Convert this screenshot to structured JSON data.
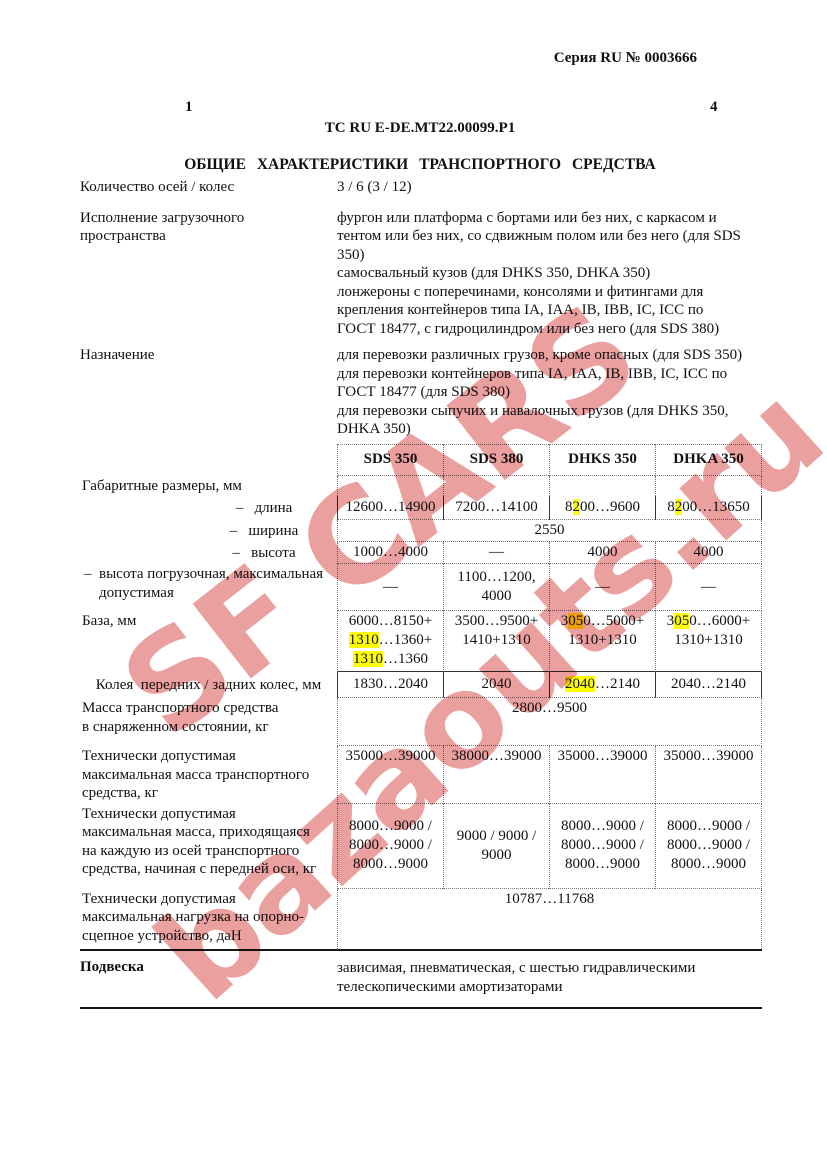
{
  "theme": {
    "highlight": "#ffff00",
    "watermark": "#d84242",
    "text": "#111111"
  },
  "header": {
    "series": "Серия RU № 0003666",
    "page_left": "1",
    "page_right": "4",
    "doc_number": "ТС RU E-DE.MT22.00099.P1",
    "heading": "ОБЩИЕ ХАРАКТЕРИСТИКИ ТРАНСПОРТНОГО СРЕДСТВА"
  },
  "fields": {
    "axles": {
      "label": "Количество осей / колес",
      "value": "3 / 6 (3 / 12)"
    },
    "cargo_space": {
      "label": "Исполнение загрузочного\nпространства",
      "value": "фургон или платформа с бортами или без них, с каркасом и\nтентом или без них, со сдвижным полом или без него (для SDS\n350)\nсамосвальный кузов (для DHKS 350, DHKA 350)\nлонжероны с поперечинами, консолями и фитингами для\nкрепления контейнеров типа IA, IAA, IB, IBB, IC, ICC по\nГОСТ 18477, с гидроцилиндром или без него (для SDS 380)"
    },
    "purpose": {
      "label": "Назначение",
      "value": "для перевозки различных грузов, кроме опасных (для SDS 350)\nдля перевозки контейнеров типа IA, IAA, IB, IBB, IC, ICC по\nГОСТ 18477 (для SDS 380)\nдля перевозки сыпучих и навалочных грузов (для DHKS 350,\nDHKA 350)"
    }
  },
  "table": {
    "columns": [
      "SDS 350",
      "SDS 380",
      "DHKS 350",
      "DHKA 350"
    ],
    "gab": {
      "label": "Габаритные размеры, мм"
    },
    "len": {
      "label": "–   длина",
      "cells": [
        [
          [
            "12600…14900"
          ]
        ],
        [
          [
            "7200…14100"
          ]
        ],
        [
          [
            "8",
            {
              "hl": "2"
            },
            "00…9600"
          ]
        ],
        [
          [
            "8",
            {
              "hl": "2"
            },
            "00…13650"
          ]
        ]
      ]
    },
    "wid": {
      "label": "–   ширина",
      "value": [
        [
          "2550"
        ]
      ]
    },
    "hei": {
      "label": "–   высота",
      "cells": [
        [
          [
            "1000…4000"
          ]
        ],
        [
          [
            "—"
          ]
        ],
        [
          [
            "4000"
          ]
        ],
        [
          [
            "4000"
          ]
        ]
      ]
    },
    "load": {
      "label": "–  высота погрузочная, максимальная\nдопустимая",
      "cells": [
        [
          [
            "—"
          ]
        ],
        [
          [
            "1100…1200,"
          ],
          [
            "4000"
          ]
        ],
        [
          [
            "—"
          ]
        ],
        [
          [
            "—"
          ]
        ]
      ]
    },
    "base": {
      "label": "База, мм",
      "cells": [
        [
          [
            "6000…8150+"
          ],
          [
            {
              "hl": "1310"
            },
            "…1360+"
          ],
          [
            {
              "hl": "1310"
            },
            "…1360"
          ]
        ],
        [
          [
            "3500…9500+"
          ],
          [
            "1410+1310"
          ]
        ],
        [
          [
            "3",
            {
              "hl": "05"
            },
            "0…5000+"
          ],
          [
            "1310+1310"
          ]
        ],
        [
          [
            "3",
            {
              "hl": "05"
            },
            "0…6000+"
          ],
          [
            "1310+1310"
          ]
        ]
      ]
    },
    "track": {
      "label": "Колея  передних / задних колес, мм",
      "cells": [
        [
          [
            "1830…2040"
          ]
        ],
        [
          [
            "2040"
          ]
        ],
        [
          [
            {
              "hl": "2040"
            },
            "…2140"
          ]
        ],
        [
          [
            "2040…2140"
          ]
        ]
      ]
    },
    "curb": {
      "label": "Масса транспортного средства\nв снаряженном состоянии, кг",
      "value": [
        [
          "2800…9500"
        ]
      ]
    },
    "max": {
      "label": "Технически допустимая\nмаксимальная масса транспортного\nсредства, кг",
      "cells": [
        [
          [
            "35000…39000"
          ]
        ],
        [
          [
            "38000…39000"
          ]
        ],
        [
          [
            "35000…39000"
          ]
        ],
        [
          [
            "35000…39000"
          ]
        ]
      ]
    },
    "axle": {
      "label": "Технически допустимая\nмаксимальная масса, приходящаяся\nна каждую из осей транспортного\nсредства, начиная с передней оси, кг",
      "cells": [
        [
          [
            "8000…9000 /"
          ],
          [
            "8000…9000 /"
          ],
          [
            "8000…9000"
          ]
        ],
        [
          [
            "9000 / 9000 /"
          ],
          [
            "9000"
          ]
        ],
        [
          [
            "8000…9000 /"
          ],
          [
            "8000…9000 /"
          ],
          [
            "8000…9000"
          ]
        ],
        [
          [
            "8000…9000 /"
          ],
          [
            "8000…9000 /"
          ],
          [
            "8000…9000"
          ]
        ]
      ]
    },
    "coup": {
      "label": "Технически допустимая\nмаксимальная нагрузка на опорно-\nсцепное устройство, даН",
      "value": [
        [
          "10787…11768"
        ]
      ]
    }
  },
  "suspension": {
    "label": "Подвеска",
    "value": "зависимая, пневматическая, с шестью гидравлическими\nтелескопическими амортизаторами"
  },
  "watermark": {
    "line1": "SF CARS",
    "line2": "bazaouts.ru"
  }
}
